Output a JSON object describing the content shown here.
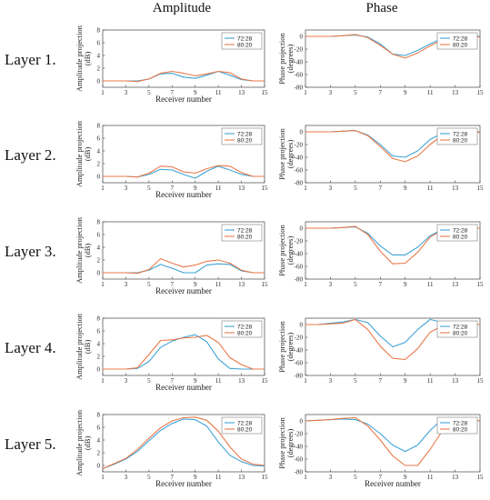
{
  "column_titles": [
    "Amplitude",
    "Phase"
  ],
  "row_labels": [
    "Layer 1.",
    "Layer 2.",
    "Layer 3.",
    "Layer 4.",
    "Layer 5."
  ],
  "colors": {
    "series_a": "#3fa3d6",
    "series_b": "#e8794a"
  },
  "chart_data": [
    {
      "type": "line",
      "row": 1,
      "col": "amplitude",
      "xlabel": "Receiver number",
      "ylabel": "Amplitude projection (dB)",
      "xlim": [
        1,
        15
      ],
      "ylim": [
        -1,
        8
      ],
      "xticks": [
        1,
        3,
        5,
        7,
        9,
        11,
        13,
        15
      ],
      "yticks": [
        0,
        2,
        4,
        6,
        8
      ],
      "x": [
        1,
        2,
        3,
        4,
        5,
        6,
        7,
        8,
        9,
        10,
        11,
        12,
        13,
        14,
        15
      ],
      "series": [
        {
          "name": "72:28",
          "values": [
            0,
            0,
            0,
            0,
            0.3,
            1.1,
            1.2,
            0.6,
            0.4,
            0.9,
            1.5,
            0.9,
            0.2,
            0,
            0
          ]
        },
        {
          "name": "80:20",
          "values": [
            0,
            0,
            0,
            -0.1,
            0.3,
            1.2,
            1.5,
            1.2,
            0.8,
            1.1,
            1.5,
            1.3,
            0.3,
            0,
            0
          ]
        }
      ]
    },
    {
      "type": "line",
      "row": 1,
      "col": "phase",
      "xlabel": "",
      "ylabel": "Phase projection (degrees)",
      "xlim": [
        1,
        15
      ],
      "ylim": [
        -80,
        10
      ],
      "xticks": [
        1,
        3,
        5,
        7,
        9,
        11,
        13,
        15
      ],
      "yticks": [
        0,
        -20,
        -40,
        -60,
        -80
      ],
      "x": [
        1,
        2,
        3,
        4,
        5,
        6,
        7,
        8,
        9,
        10,
        11,
        12,
        13,
        14,
        15
      ],
      "series": [
        {
          "name": "72:28",
          "values": [
            0,
            0,
            0,
            1,
            2,
            -1,
            -12,
            -28,
            -30,
            -22,
            -12,
            -3,
            0,
            0,
            0
          ]
        },
        {
          "name": "80:20",
          "values": [
            0,
            0,
            0,
            1,
            3,
            -2,
            -14,
            -28,
            -34,
            -26,
            -15,
            -5,
            0,
            0,
            -1
          ]
        }
      ]
    },
    {
      "type": "line",
      "row": 2,
      "col": "amplitude",
      "xlabel": "Receiver number",
      "ylabel": "Amplitude projection (dB)",
      "xlim": [
        1,
        15
      ],
      "ylim": [
        -1,
        8
      ],
      "xticks": [
        1,
        3,
        5,
        7,
        9,
        11,
        13,
        15
      ],
      "yticks": [
        0,
        2,
        4,
        6,
        8
      ],
      "x": [
        1,
        2,
        3,
        4,
        5,
        6,
        7,
        8,
        9,
        10,
        11,
        12,
        13,
        14,
        15
      ],
      "series": [
        {
          "name": "72:28",
          "values": [
            0,
            0,
            0,
            -0.1,
            0.3,
            1.1,
            1.0,
            0.3,
            -0.3,
            0.8,
            1.6,
            1.0,
            0.3,
            0,
            0
          ]
        },
        {
          "name": "80:20",
          "values": [
            0,
            0,
            0,
            -0.1,
            0.5,
            1.6,
            1.5,
            0.7,
            0.5,
            1.2,
            1.7,
            1.6,
            0.6,
            0,
            0
          ]
        }
      ]
    },
    {
      "type": "line",
      "row": 2,
      "col": "phase",
      "xlabel": "",
      "ylabel": "Phase projection (degrees)",
      "xlim": [
        1,
        15
      ],
      "ylim": [
        -80,
        10
      ],
      "xticks": [
        1,
        3,
        5,
        7,
        9,
        11,
        13,
        15
      ],
      "yticks": [
        0,
        -20,
        -40,
        -60,
        -80
      ],
      "x": [
        1,
        2,
        3,
        4,
        5,
        6,
        7,
        8,
        9,
        10,
        11,
        12,
        13,
        14,
        15
      ],
      "series": [
        {
          "name": "72:28",
          "values": [
            0,
            0,
            0,
            1,
            2,
            -5,
            -20,
            -38,
            -40,
            -30,
            -12,
            -2,
            0,
            0,
            0
          ]
        },
        {
          "name": "80:20",
          "values": [
            0,
            0,
            0,
            1,
            2,
            -6,
            -23,
            -42,
            -47,
            -38,
            -20,
            -5,
            0,
            0,
            -1
          ]
        }
      ]
    },
    {
      "type": "line",
      "row": 3,
      "col": "amplitude",
      "xlabel": "Receiver number",
      "ylabel": "Amplitude projection (dB)",
      "xlim": [
        1,
        15
      ],
      "ylim": [
        -1,
        8
      ],
      "xticks": [
        1,
        3,
        5,
        7,
        9,
        11,
        13,
        15
      ],
      "yticks": [
        0,
        2,
        4,
        6,
        8
      ],
      "x": [
        1,
        2,
        3,
        4,
        5,
        6,
        7,
        8,
        9,
        10,
        11,
        12,
        13,
        14,
        15
      ],
      "series": [
        {
          "name": "72:28",
          "values": [
            0,
            0,
            0,
            0,
            0.4,
            1.3,
            0.7,
            0,
            0,
            1.2,
            1.4,
            1.3,
            0.3,
            0,
            0
          ]
        },
        {
          "name": "80:20",
          "values": [
            0,
            0,
            0,
            -0.1,
            0.5,
            2.2,
            1.5,
            0.9,
            1.2,
            1.8,
            2.0,
            1.5,
            0.4,
            0,
            0
          ]
        }
      ]
    },
    {
      "type": "line",
      "row": 3,
      "col": "phase",
      "xlabel": "",
      "ylabel": "Phase projection (degrees)",
      "xlim": [
        1,
        15
      ],
      "ylim": [
        -80,
        10
      ],
      "xticks": [
        1,
        3,
        5,
        7,
        9,
        11,
        13,
        15
      ],
      "yticks": [
        0,
        -20,
        -40,
        -60,
        -80
      ],
      "x": [
        1,
        2,
        3,
        4,
        5,
        6,
        7,
        8,
        9,
        10,
        11,
        12,
        13,
        14,
        15
      ],
      "series": [
        {
          "name": "72:28",
          "values": [
            0,
            0,
            0,
            1,
            2,
            -8,
            -28,
            -42,
            -42,
            -30,
            -12,
            -2,
            0,
            0,
            0
          ]
        },
        {
          "name": "80:20",
          "values": [
            0,
            0,
            0,
            1,
            3,
            -10,
            -36,
            -56,
            -55,
            -38,
            -14,
            -3,
            0,
            0,
            0
          ]
        }
      ]
    },
    {
      "type": "line",
      "row": 4,
      "col": "amplitude",
      "xlabel": "Receiver number",
      "ylabel": "Amplitude projection (dB)",
      "xlim": [
        1,
        15
      ],
      "ylim": [
        -1,
        8
      ],
      "xticks": [
        1,
        3,
        5,
        7,
        9,
        11,
        13,
        15
      ],
      "yticks": [
        0,
        2,
        4,
        6,
        8
      ],
      "x": [
        1,
        2,
        3,
        4,
        5,
        6,
        7,
        8,
        9,
        10,
        11,
        12,
        13,
        14,
        15
      ],
      "series": [
        {
          "name": "72:28",
          "values": [
            0,
            0,
            0,
            0.1,
            1.2,
            3.4,
            4.4,
            5.0,
            5.4,
            4.3,
            1.6,
            0.1,
            0,
            0,
            0
          ]
        },
        {
          "name": "80:20",
          "values": [
            0,
            0,
            0,
            0.2,
            2.3,
            4.5,
            4.6,
            4.9,
            5.0,
            5.3,
            4.2,
            1.8,
            0.7,
            0,
            0
          ]
        }
      ]
    },
    {
      "type": "line",
      "row": 4,
      "col": "phase",
      "xlabel": "",
      "ylabel": "Phase projection (degrees)",
      "xlim": [
        1,
        15
      ],
      "ylim": [
        -80,
        10
      ],
      "xticks": [
        1,
        3,
        5,
        7,
        9,
        11,
        13,
        15
      ],
      "yticks": [
        0,
        -20,
        -40,
        -60,
        -80
      ],
      "x": [
        1,
        2,
        3,
        4,
        5,
        6,
        7,
        8,
        9,
        10,
        11,
        12,
        13,
        14,
        15
      ],
      "series": [
        {
          "name": "72:28",
          "values": [
            0,
            0,
            2,
            4,
            8,
            3,
            -18,
            -35,
            -28,
            -8,
            8,
            3,
            0,
            0,
            0
          ]
        },
        {
          "name": "80:20",
          "values": [
            0,
            0,
            1,
            2,
            8,
            -8,
            -34,
            -53,
            -55,
            -38,
            -12,
            -2,
            0,
            0,
            0
          ]
        }
      ]
    },
    {
      "type": "line",
      "row": 5,
      "col": "amplitude",
      "xlabel": "Receiver number",
      "ylabel": "Amplitude projection (dB)",
      "xlim": [
        1,
        15
      ],
      "ylim": [
        -1,
        8
      ],
      "xticks": [
        1,
        3,
        5,
        7,
        9,
        11,
        13,
        15
      ],
      "yticks": [
        0,
        2,
        4,
        6,
        8
      ],
      "x": [
        1,
        2,
        3,
        4,
        5,
        6,
        7,
        8,
        9,
        10,
        11,
        12,
        13,
        14,
        15
      ],
      "series": [
        {
          "name": "72:28",
          "values": [
            -0.5,
            0.2,
            1.0,
            2.2,
            3.9,
            5.5,
            6.6,
            7.3,
            7.2,
            6.2,
            3.7,
            1.6,
            0.6,
            0,
            -0.1
          ]
        },
        {
          "name": "80:20",
          "values": [
            -0.5,
            0.3,
            1.1,
            2.5,
            4.3,
            5.9,
            7.0,
            7.5,
            7.6,
            7.1,
            5.4,
            2.9,
            1.0,
            0.2,
            0
          ]
        }
      ]
    },
    {
      "type": "line",
      "row": 5,
      "col": "phase",
      "xlabel": "Receiver number",
      "ylabel": "Phase projection (degrees)",
      "xlim": [
        1,
        15
      ],
      "ylim": [
        -80,
        10
      ],
      "xticks": [
        1,
        3,
        5,
        7,
        9,
        11,
        13,
        15
      ],
      "yticks": [
        0,
        -20,
        -40,
        -60,
        -80
      ],
      "x": [
        1,
        2,
        3,
        4,
        5,
        6,
        7,
        8,
        9,
        10,
        11,
        12,
        13,
        14,
        15
      ],
      "series": [
        {
          "name": "72:28",
          "values": [
            0,
            1,
            2,
            3,
            2,
            -5,
            -20,
            -38,
            -48,
            -38,
            -15,
            3,
            3,
            2,
            0
          ]
        },
        {
          "name": "80:20",
          "values": [
            0,
            1,
            2,
            4,
            5,
            -8,
            -30,
            -55,
            -70,
            -70,
            -45,
            -15,
            -3,
            1,
            0
          ]
        }
      ]
    }
  ]
}
